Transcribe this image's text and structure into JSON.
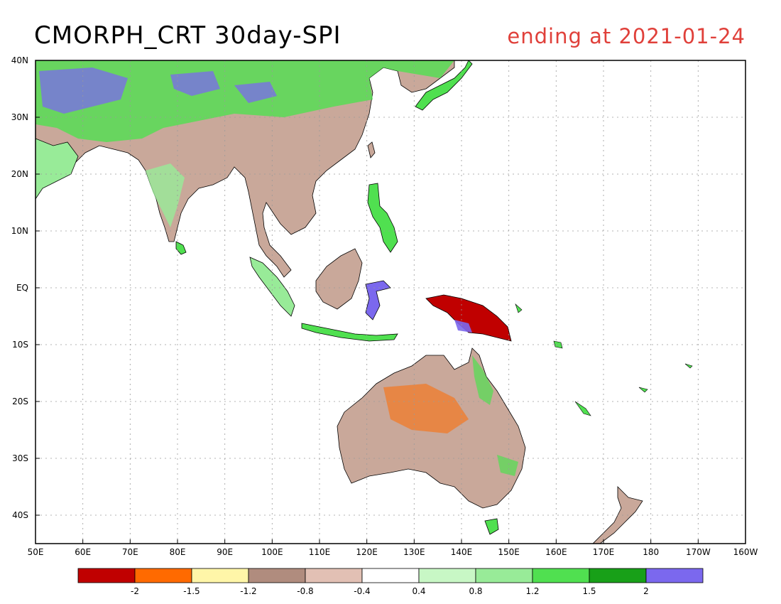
{
  "title": "CMORPH_CRT 30day-SPI",
  "subtitle": "ending at 2021-01-24",
  "colors": {
    "title": "#000000",
    "subtitle": "#e0403a",
    "land_dry_mild": "#c9a89a",
    "ocean": "#ffffff"
  },
  "map": {
    "lon_range": [
      50,
      200
    ],
    "lat_range": [
      -45,
      40
    ],
    "lat_labels": [
      "40N",
      "30N",
      "20N",
      "10N",
      "EQ",
      "10S",
      "20S",
      "30S",
      "40S"
    ],
    "lat_values": [
      40,
      30,
      20,
      10,
      0,
      -10,
      -20,
      -30,
      -40
    ],
    "lon_labels": [
      "50E",
      "60E",
      "70E",
      "80E",
      "90E",
      "100E",
      "110E",
      "120E",
      "130E",
      "140E",
      "150E",
      "160E",
      "170E",
      "180",
      "170W",
      "160W"
    ],
    "lon_values": [
      50,
      60,
      70,
      80,
      90,
      100,
      110,
      120,
      130,
      140,
      150,
      160,
      170,
      180,
      190,
      200
    ],
    "grid": true
  },
  "colorbar": {
    "colors": [
      "#c00000",
      "#ff6a00",
      "#fff6a8",
      "#b08c7e",
      "#e2c0b4",
      "#ffffff",
      "#c8f7c5",
      "#98eb98",
      "#50e050",
      "#18a018",
      "#7b68ee"
    ],
    "labels": [
      "-2",
      "-1.5",
      "-1.2",
      "-0.8",
      "-0.4",
      "0.4",
      "0.8",
      "1.2",
      "1.5",
      "2"
    ]
  }
}
